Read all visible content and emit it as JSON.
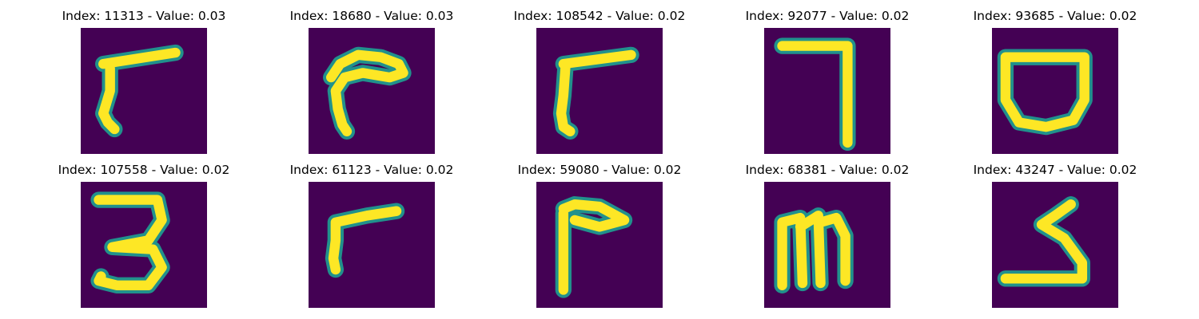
{
  "panels": [
    {
      "title": "Index: 11313 - Value: 0.03",
      "glyph": "stroke-hook-left"
    },
    {
      "title": "Index: 18680 - Value: 0.03",
      "glyph": "curved-hook"
    },
    {
      "title": "Index: 108542 - Value: 0.02",
      "glyph": "stroke-hook-left"
    },
    {
      "title": "Index: 92077 - Value: 0.02",
      "glyph": "seven-angle"
    },
    {
      "title": "Index: 93685 - Value: 0.02",
      "glyph": "bowl-shape"
    },
    {
      "title": "Index: 107558 - Value: 0.02",
      "glyph": "digit-three"
    },
    {
      "title": "Index: 61123 - Value: 0.02",
      "glyph": "stroke-hook-left"
    },
    {
      "title": "Index: 59080 - Value: 0.02",
      "glyph": "angle-hook"
    },
    {
      "title": "Index: 68381 - Value: 0.02",
      "glyph": "letter-m"
    },
    {
      "title": "Index: 43247 - Value: 0.02",
      "glyph": "zigzag-five"
    }
  ],
  "colors": {
    "background": "#440154",
    "stroke_core": "#fde725",
    "stroke_edge": "#21918c"
  }
}
